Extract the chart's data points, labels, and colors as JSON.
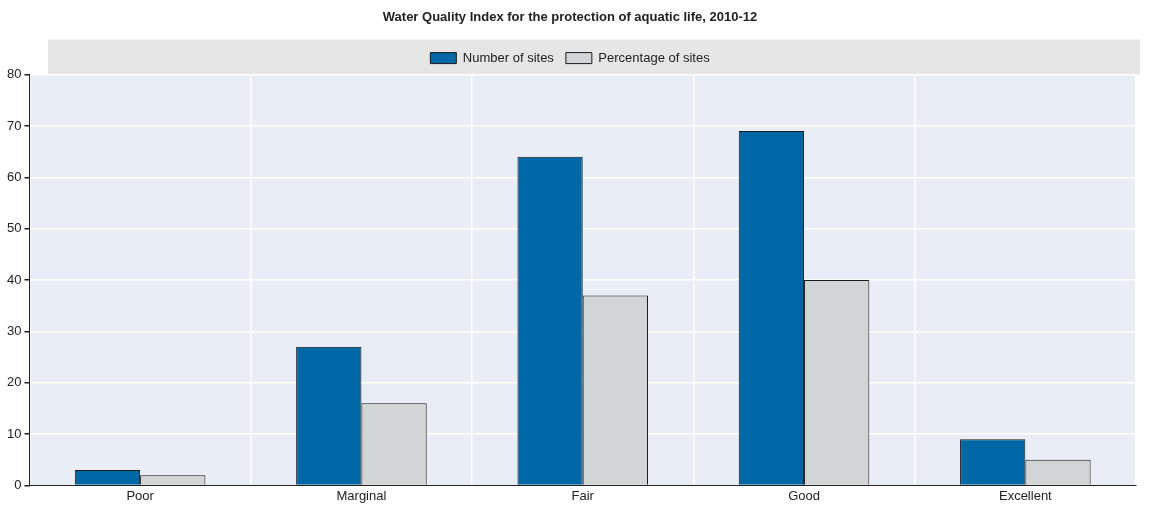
{
  "chart_data": {
    "type": "bar",
    "title": "Water Quality Index for the protection of aquatic life, 2010-12",
    "categories": [
      "Poor",
      "Marginal",
      "Fair",
      "Good",
      "Excellent"
    ],
    "series": [
      {
        "name": "Number of sites",
        "color": "#0067a7",
        "values": [
          3,
          27,
          64,
          69,
          9
        ]
      },
      {
        "name": "Percentage of sites",
        "color": "#d3d4d6",
        "values": [
          2,
          16,
          37,
          40,
          5
        ]
      }
    ],
    "ylim": [
      0,
      80
    ],
    "yticks": [
      0,
      10,
      20,
      30,
      40,
      50,
      60,
      70,
      80
    ],
    "grid": true,
    "legend": "top"
  }
}
